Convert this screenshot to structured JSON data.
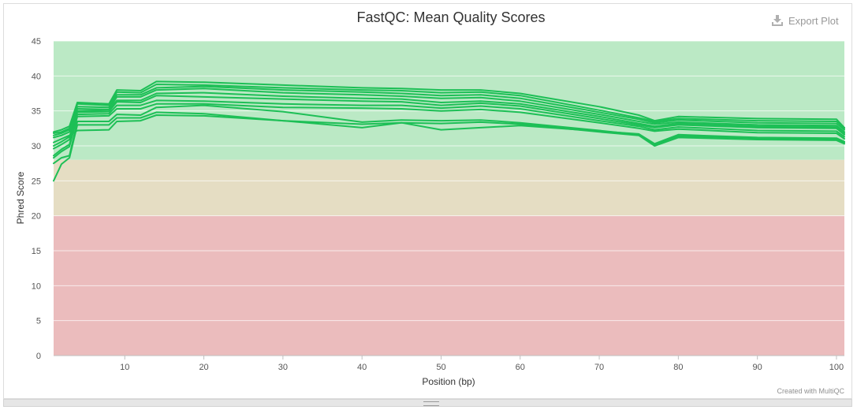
{
  "export_label": "Export Plot",
  "credit": "Created with MultiQC",
  "colors": {
    "line": "#1dbf56",
    "zone_good": "#bbe9c5",
    "zone_warn": "#e5ddc3",
    "zone_fail": "#ebbcbd",
    "grid": "#ffffff"
  },
  "chart_data": {
    "type": "line",
    "title": "FastQC: Mean Quality Scores",
    "xlabel": "Position (bp)",
    "ylabel": "Phred Score",
    "xlim": [
      1,
      101
    ],
    "ylim": [
      0,
      45
    ],
    "xticks": [
      10,
      20,
      30,
      40,
      50,
      60,
      70,
      80,
      90,
      100
    ],
    "yticks": [
      0,
      5,
      10,
      15,
      20,
      25,
      30,
      35,
      40,
      45
    ],
    "zones": [
      {
        "from": 28,
        "to": 45,
        "color": "#bbe9c5"
      },
      {
        "from": 20,
        "to": 28,
        "color": "#e5ddc3"
      },
      {
        "from": 0,
        "to": 20,
        "color": "#ebbcbd"
      }
    ],
    "x": [
      1,
      2,
      3,
      4,
      8,
      9,
      12,
      14,
      20,
      30,
      40,
      45,
      50,
      55,
      60,
      70,
      75,
      77,
      80,
      90,
      100,
      101
    ],
    "series": [
      {
        "values": [
          32.0,
          32.3,
          32.8,
          36.2,
          36.0,
          38.0,
          37.9,
          39.2,
          39.1,
          38.7,
          38.3,
          38.2,
          38.0,
          38.0,
          37.5,
          35.6,
          34.4,
          33.6,
          34.2,
          33.9,
          33.8,
          32.6
        ]
      },
      {
        "values": [
          31.8,
          32.0,
          32.5,
          36.0,
          35.8,
          37.7,
          37.6,
          38.8,
          38.7,
          38.3,
          38.0,
          37.9,
          37.6,
          37.7,
          37.2,
          35.1,
          34.0,
          33.5,
          33.9,
          33.6,
          33.5,
          32.5
        ]
      },
      {
        "values": [
          31.5,
          31.8,
          32.3,
          35.6,
          35.5,
          37.3,
          37.3,
          38.3,
          38.5,
          38.0,
          37.7,
          37.5,
          37.2,
          37.3,
          36.8,
          34.8,
          33.8,
          33.3,
          33.7,
          33.3,
          33.2,
          32.3
        ]
      },
      {
        "values": [
          31.2,
          31.5,
          32.0,
          35.3,
          35.2,
          37.0,
          37.0,
          38.0,
          38.2,
          37.6,
          37.3,
          37.1,
          36.8,
          36.9,
          36.4,
          34.5,
          33.5,
          33.1,
          33.4,
          33.0,
          32.9,
          32.0
        ]
      },
      {
        "values": [
          30.0,
          30.6,
          31.3,
          35.0,
          35.1,
          36.5,
          36.5,
          37.5,
          37.6,
          37.1,
          36.8,
          36.7,
          36.2,
          36.4,
          36.0,
          34.2,
          33.2,
          32.8,
          33.2,
          32.8,
          32.7,
          31.8
        ]
      },
      {
        "values": [
          29.6,
          30.2,
          30.9,
          34.8,
          34.9,
          36.3,
          36.2,
          37.2,
          37.0,
          36.7,
          36.4,
          36.3,
          35.8,
          36.1,
          35.7,
          33.9,
          33.0,
          32.6,
          33.0,
          32.6,
          32.5,
          31.6
        ]
      },
      {
        "values": [
          28.6,
          29.5,
          30.2,
          34.5,
          34.6,
          35.8,
          35.8,
          36.5,
          36.4,
          36.0,
          35.8,
          35.8,
          35.4,
          35.7,
          35.3,
          33.6,
          32.8,
          32.3,
          32.7,
          32.2,
          32.1,
          31.3
        ]
      },
      {
        "values": [
          28.3,
          29.2,
          29.9,
          34.2,
          34.3,
          35.3,
          35.3,
          36.0,
          36.0,
          35.5,
          35.4,
          35.3,
          35.0,
          35.2,
          34.8,
          33.3,
          32.5,
          32.1,
          32.4,
          31.9,
          31.8,
          31.0
        ]
      },
      {
        "values": [
          27.5,
          28.3,
          28.6,
          33.5,
          33.5,
          34.5,
          34.4,
          35.5,
          35.8,
          34.9,
          33.4,
          33.7,
          33.6,
          33.7,
          33.3,
          32.2,
          31.6,
          30.2,
          31.4,
          31.1,
          31.0,
          30.5
        ]
      },
      {
        "values": [
          25.0,
          27.4,
          28.3,
          33.0,
          33.0,
          34.0,
          34.0,
          34.8,
          34.6,
          33.6,
          33.1,
          33.3,
          33.2,
          33.4,
          33.1,
          32.0,
          31.5,
          30.0,
          31.2,
          30.9,
          30.8,
          30.3
        ]
      },
      {
        "values": [
          30.5,
          31.0,
          31.5,
          32.2,
          32.3,
          33.5,
          33.6,
          34.4,
          34.3,
          33.6,
          32.6,
          33.3,
          32.3,
          32.6,
          32.9,
          32.1,
          31.7,
          30.3,
          31.6,
          31.2,
          31.1,
          30.6
        ]
      }
    ]
  }
}
